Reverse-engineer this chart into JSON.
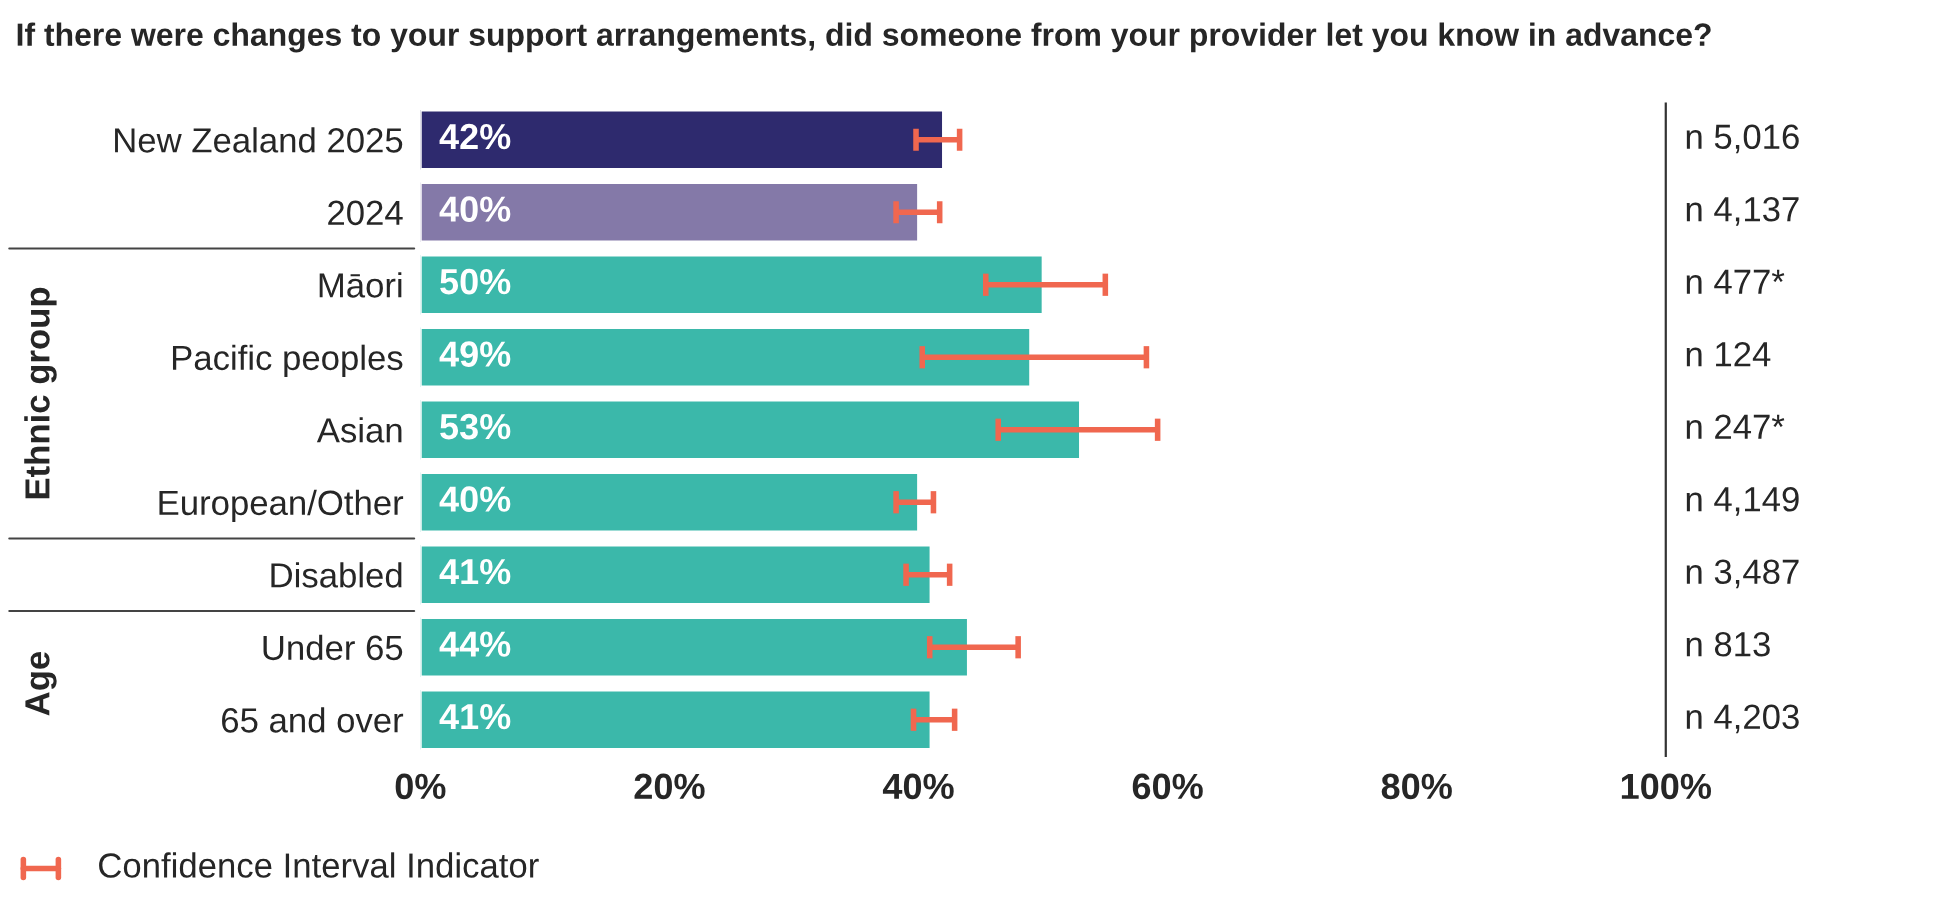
{
  "chart_data": {
    "type": "bar",
    "orientation": "horizontal",
    "title": "If there were changes to your support arrangements, did someone from your provider let you know in advance?",
    "categories": [
      "New Zealand 2025",
      "2024",
      "Māori",
      "Pacific peoples",
      "Asian",
      "European/Other",
      "Disabled",
      "Under 65",
      "65 and over"
    ],
    "values": [
      42,
      40,
      50,
      49,
      53,
      40,
      41,
      44,
      41
    ],
    "value_labels": [
      "42%",
      "40%",
      "50%",
      "49%",
      "53%",
      "40%",
      "41%",
      "44%",
      "41%"
    ],
    "colors": [
      "#2e2a6e",
      "#8479a8",
      "#3bb8aa",
      "#3bb8aa",
      "#3bb8aa",
      "#3bb8aa",
      "#3bb8aa",
      "#3bb8aa",
      "#3bb8aa"
    ],
    "errors": [
      [
        39.8,
        43.3
      ],
      [
        38.2,
        41.7
      ],
      [
        45.4,
        55.0
      ],
      [
        40.3,
        58.3
      ],
      [
        46.4,
        59.2
      ],
      [
        38.2,
        41.2
      ],
      [
        39.0,
        42.5
      ],
      [
        40.9,
        48.0
      ],
      [
        39.6,
        42.9
      ]
    ],
    "xlim": [
      0,
      100
    ],
    "xticks": [
      {
        "value": 0,
        "label": "0%"
      },
      {
        "value": 20,
        "label": "20%"
      },
      {
        "value": 40,
        "label": "40%"
      },
      {
        "value": 60,
        "label": "60%"
      },
      {
        "value": 80,
        "label": "80%"
      },
      {
        "value": 100,
        "label": "100%"
      }
    ],
    "annotations": [
      "Ethnic group",
      "Age",
      "n 5,016",
      "n 4,137",
      "n 477*",
      "n 124",
      "n 247*",
      "n 4,149",
      "n 3,487",
      "n 813",
      "n 4,203",
      "Confidence Interval Indicator"
    ],
    "grid": false,
    "legend": false
  }
}
